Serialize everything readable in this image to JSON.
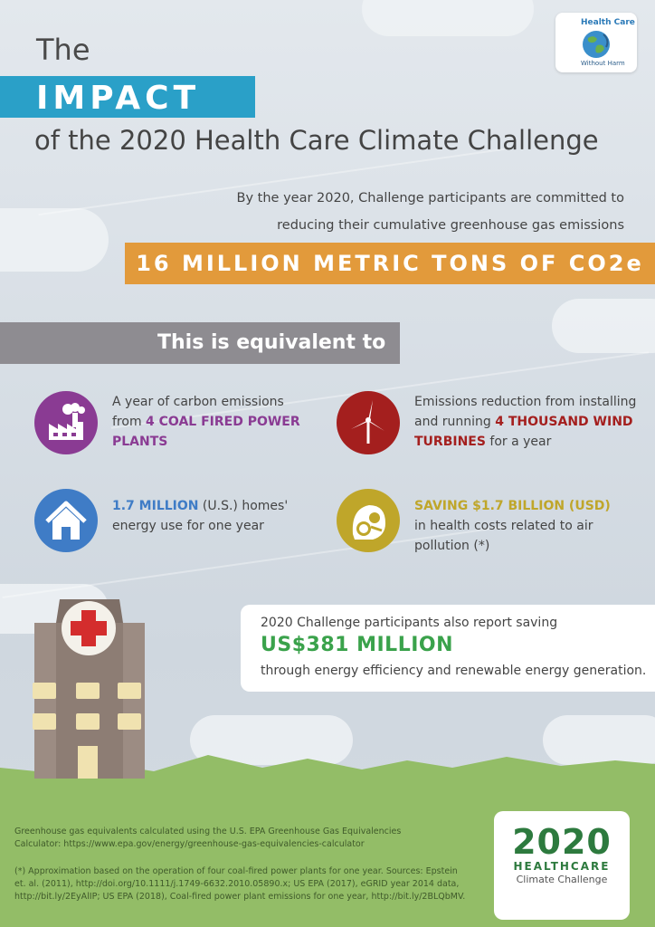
{
  "header": {
    "line1": "The",
    "line2": "IMPACT",
    "line3": "of the 2020 Health Care Climate Challenge"
  },
  "logo_hcwh": {
    "top": "Health Care",
    "bottom": "Without Harm"
  },
  "commitment": {
    "line1": "By the year 2020, Challenge participants are committed to",
    "line2": "reducing their cumulative greenhouse gas emissions",
    "amount": "16 MILLION METRIC TONS OF CO2e"
  },
  "equivalent_heading": "This is equivalent to",
  "items": {
    "coal": {
      "icon": "factory-icon",
      "pre": "A year of carbon emissions",
      "pre2": "from ",
      "highlight": "4 COAL FIRED POWER",
      "highlight2": "PLANTS"
    },
    "wind": {
      "icon": "wind-turbine-icon",
      "pre": "Emissions reduction from installing",
      "pre2": "and running ",
      "highlight": "4 THOUSAND WIND",
      "highlight2": "TURBINES",
      "post": " for a year"
    },
    "homes": {
      "icon": "house-icon",
      "highlight": "1.7 MILLION",
      "post": "  (U.S.) homes'",
      "line2": "energy use for one year"
    },
    "health": {
      "icon": "gas-mask-icon",
      "highlight": "SAVING $1.7 BILLION (USD)",
      "line2": "in health costs related to air",
      "line3": "pollution (*)"
    }
  },
  "savings": {
    "lead": "2020 Challenge participants also report saving",
    "amount": "US$381 MILLION",
    "trail": "through energy efficiency and renewable energy generation."
  },
  "footnotes": {
    "calc": "Greenhouse gas equivalents calculated using the U.S. EPA Greenhouse Gas Equivalencies Calculator: https://www.epa.gov/energy/greenhouse-gas-equivalencies-calculator",
    "approx": "(*) Approximation based on the operation of four coal-fired power plants for one year. Sources: Epstein et. al. (2011), http://doi.org/10.1111/j.1749-6632.2010.05890.x; US EPA (2017), eGRID year 2014 data, http://bit.ly/2EyAlIP; US EPA (2018), Coal-fired power plant emissions for one year, http://bit.ly/2BLQbMV."
  },
  "logo_2020": {
    "year": "2020",
    "line1": "HEALTHCARE",
    "line2": "Climate Challenge"
  },
  "colors": {
    "impact_blue": "#2aa0c8",
    "co2_orange": "#e29a3b",
    "equiv_gray": "#8e8c91",
    "coal_purple": "#8a3b93",
    "wind_red": "#a41f1e",
    "homes_blue": "#3f7cc6",
    "health_olive": "#bfa62a",
    "savings_green": "#3aa24b",
    "ground_green": "#93bd67"
  }
}
